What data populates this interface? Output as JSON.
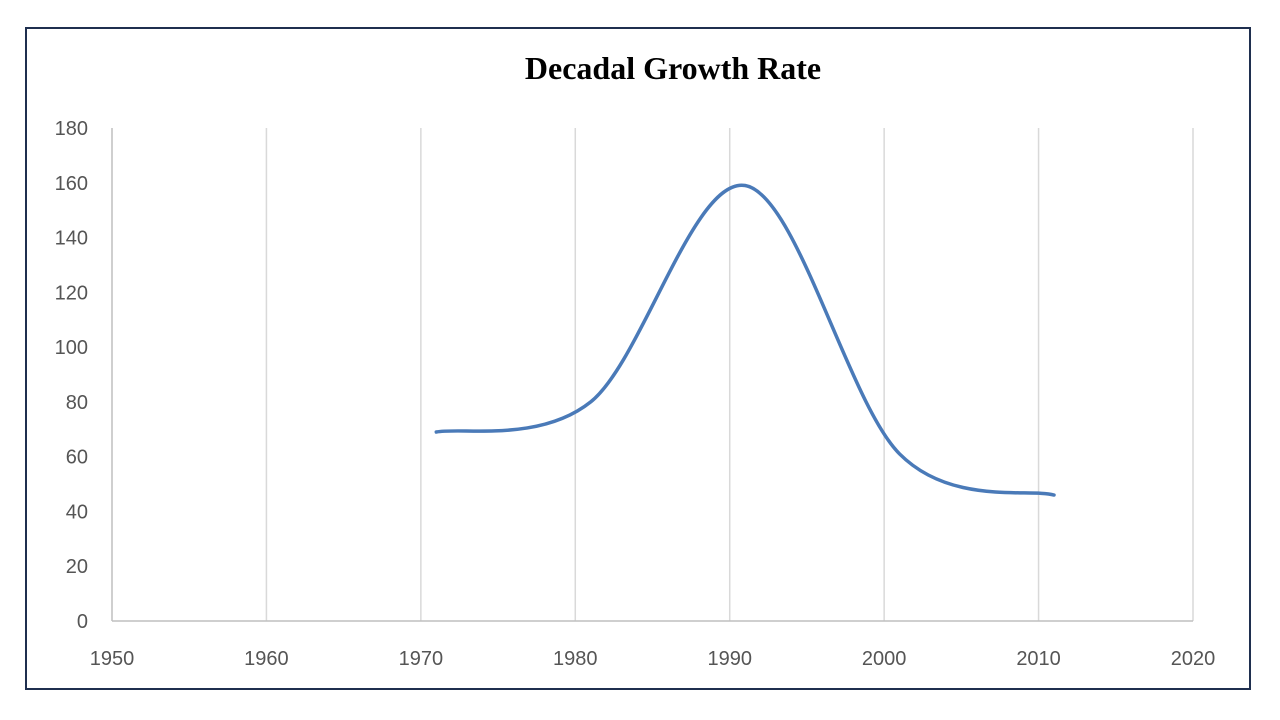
{
  "chart_data": {
    "type": "line",
    "title": "Decadal Growth Rate",
    "xlabel": "",
    "ylabel": "",
    "xlim": [
      1950,
      2020
    ],
    "ylim": [
      0,
      180
    ],
    "x_ticks": [
      1950,
      1960,
      1970,
      1980,
      1990,
      2000,
      2010,
      2020
    ],
    "y_ticks": [
      0,
      20,
      40,
      60,
      80,
      100,
      120,
      140,
      160,
      180
    ],
    "grid": "vertical",
    "smooth": true,
    "series": [
      {
        "color": "#4a7ab8",
        "x": [
          1971,
          1981,
          1991,
          2001,
          2011
        ],
        "y": [
          69,
          80,
          159,
          61,
          46
        ]
      }
    ]
  }
}
